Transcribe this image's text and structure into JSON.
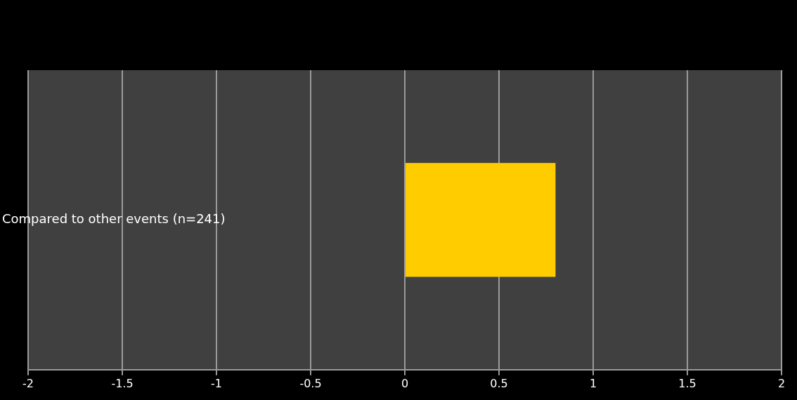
{
  "chart_data": {
    "type": "bar",
    "orientation": "horizontal",
    "categories": [
      "Compared to other events (n=241)"
    ],
    "values": [
      0.8
    ],
    "color": "#ffcc00",
    "xlim": [
      -2,
      2
    ],
    "xticks": [
      -2,
      -1.5,
      -1,
      -0.5,
      0,
      0.5,
      1,
      1.5,
      2
    ],
    "grid": "x",
    "legend": false
  }
}
